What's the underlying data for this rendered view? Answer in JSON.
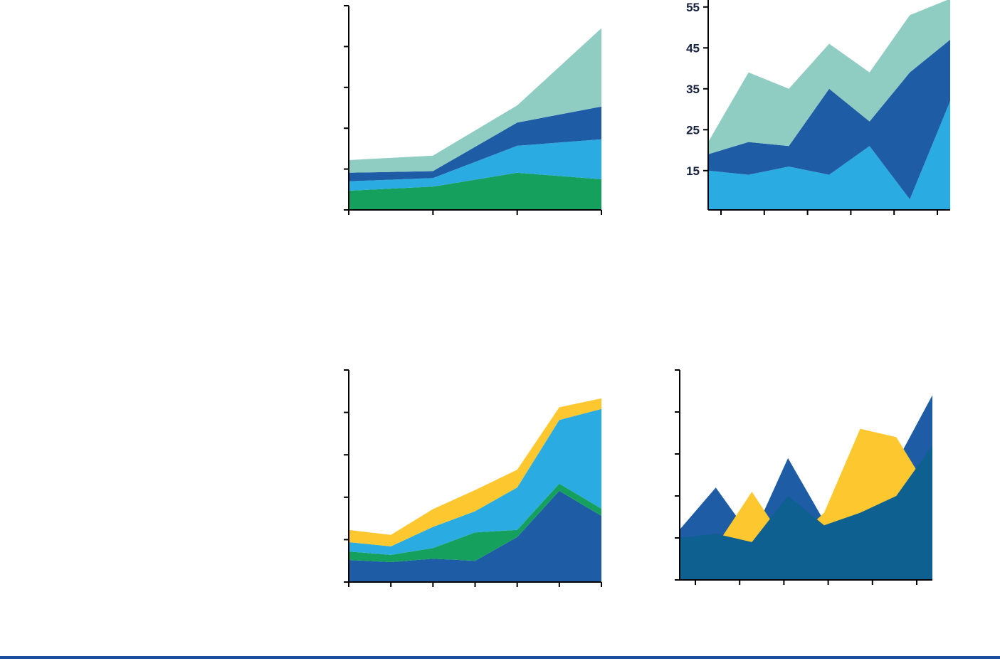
{
  "page": {
    "background": "#ffffff",
    "footer_rule_color": "#1b4f9e"
  },
  "palette": {
    "green": "#16a05d",
    "light_blue": "#2aabe2",
    "dark_blue": "#1e5ca6",
    "teal": "#8fccc1",
    "yellow": "#fdc82f",
    "deep_blue": "#0d608f",
    "axis": "#000000",
    "axis_label": "#16213e"
  },
  "chart_data": [
    {
      "type": "area",
      "stacked": true,
      "title": "",
      "xlabel": "",
      "ylabel": "",
      "x": [
        0,
        1,
        2,
        3
      ],
      "series": [
        {
          "name": "green",
          "color": "#16a05d",
          "values": [
            4.7,
            5.7,
            9.1,
            7.5
          ]
        },
        {
          "name": "light-blue",
          "color": "#2aabe2",
          "values": [
            2.3,
            2.1,
            6.6,
            9.8
          ]
        },
        {
          "name": "dark-blue",
          "color": "#1e5ca6",
          "values": [
            2.1,
            1.7,
            5.7,
            8.0
          ]
        },
        {
          "name": "teal",
          "color": "#8fccc1",
          "values": [
            3.1,
            3.8,
            4.2,
            19.2
          ]
        }
      ],
      "ylim": [
        0,
        50
      ],
      "yticks": [
        0,
        10,
        20,
        30,
        40,
        50
      ],
      "ytick_labels": [],
      "grid": false,
      "legend": "none"
    },
    {
      "type": "area",
      "stacked": true,
      "title": "",
      "xlabel": "",
      "ylabel": "",
      "x": [
        0,
        1,
        2,
        3,
        4,
        5,
        6
      ],
      "series": [
        {
          "name": "light-blue",
          "color": "#2aabe2",
          "values": [
            15,
            14,
            16,
            14,
            21,
            8,
            32
          ]
        },
        {
          "name": "dark-blue",
          "color": "#1e5ca6",
          "values": [
            4,
            8,
            5,
            21,
            6,
            31,
            15
          ]
        },
        {
          "name": "teal",
          "color": "#8fccc1",
          "values": [
            3,
            17,
            14,
            11,
            12,
            14,
            10
          ]
        }
      ],
      "ylim": [
        5.4,
        57
      ],
      "yticks": [
        15,
        25,
        35,
        45,
        55
      ],
      "ytick_labels": [
        "15",
        "25",
        "35",
        "45",
        "55"
      ],
      "grid": false,
      "legend": "none"
    },
    {
      "type": "area",
      "stacked": true,
      "title": "",
      "xlabel": "",
      "ylabel": "",
      "x": [
        0,
        1,
        2,
        3,
        4,
        5,
        6
      ],
      "series": [
        {
          "name": "dark-blue",
          "color": "#1e5ca6",
          "values": [
            5.2,
            4.7,
            5.5,
            5,
            10.6,
            21.5,
            15.6
          ]
        },
        {
          "name": "green",
          "color": "#16a05d",
          "values": [
            2,
            1.7,
            2.5,
            6.7,
            1.7,
            1.7,
            1.7
          ]
        },
        {
          "name": "light-blue",
          "color": "#2aabe2",
          "values": [
            2.2,
            2,
            5,
            5,
            10,
            15,
            23.5
          ]
        },
        {
          "name": "yellow",
          "color": "#fdc82f",
          "values": [
            2.9,
            2.7,
            4.2,
            5,
            4.2,
            3,
            2.5
          ]
        }
      ],
      "ylim": [
        0,
        50
      ],
      "yticks": [
        0,
        10,
        20,
        30,
        40,
        50
      ],
      "ytick_labels": [],
      "grid": false,
      "legend": "none"
    },
    {
      "type": "area",
      "stacked": false,
      "title": "",
      "xlabel": "",
      "ylabel": "",
      "x": [
        0,
        1,
        2,
        3,
        4,
        5,
        6,
        7
      ],
      "series": [
        {
          "name": "dark-blue",
          "color": "#1e5ca6",
          "values": [
            12,
            22,
            10,
            29,
            14,
            18,
            28,
            44
          ]
        },
        {
          "name": "yellow",
          "color": "#fdc82f",
          "values": [
            6,
            8,
            21,
            8,
            16,
            36,
            34,
            20
          ]
        },
        {
          "name": "deep-blue",
          "color": "#0d608f",
          "values": [
            10,
            11,
            9,
            20,
            13,
            16,
            20,
            32
          ]
        }
      ],
      "ylim": [
        0,
        50
      ],
      "yticks": [
        0,
        10,
        20,
        30,
        40,
        50
      ],
      "ytick_labels": [],
      "grid": false,
      "legend": "none"
    }
  ]
}
